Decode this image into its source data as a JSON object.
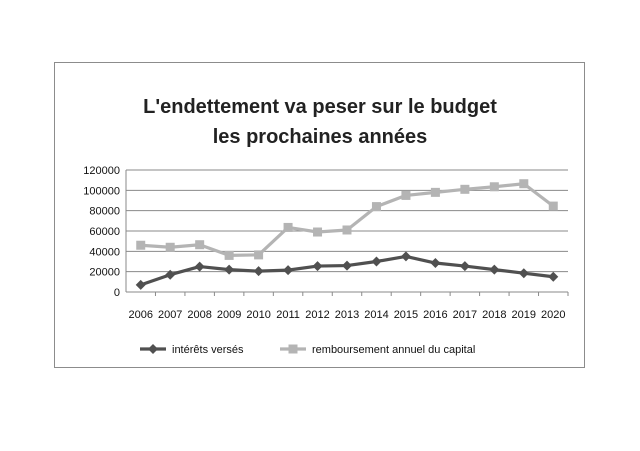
{
  "chart_data": {
    "type": "line",
    "title_lines": [
      "L'endettement va  peser sur le budget",
      "les prochaines années"
    ],
    "categories": [
      "2006",
      "2007",
      "2008",
      "2009",
      "2010",
      "2011",
      "2012",
      "2013",
      "2014",
      "2015",
      "2016",
      "2017",
      "2018",
      "2019",
      "2020"
    ],
    "ylim": [
      0,
      120000
    ],
    "yticks": [
      "0",
      "20000",
      "40000",
      "60000",
      "80000",
      "100000",
      "120000"
    ],
    "grid": true,
    "legend_position": "bottom",
    "series": [
      {
        "name": "intérêts versés",
        "color": "#505050",
        "marker": "diamond",
        "values": [
          7000,
          17000,
          25000,
          22000,
          20500,
          21500,
          25500,
          26000,
          30000,
          35000,
          28500,
          25500,
          22000,
          18500,
          15000
        ]
      },
      {
        "name": "remboursement annuel du capital",
        "color": "#b4b4b4",
        "marker": "square",
        "values": [
          46000,
          44000,
          46500,
          36000,
          36500,
          63500,
          59000,
          61000,
          84000,
          95000,
          98000,
          101000,
          103500,
          106500,
          84500
        ]
      }
    ]
  }
}
